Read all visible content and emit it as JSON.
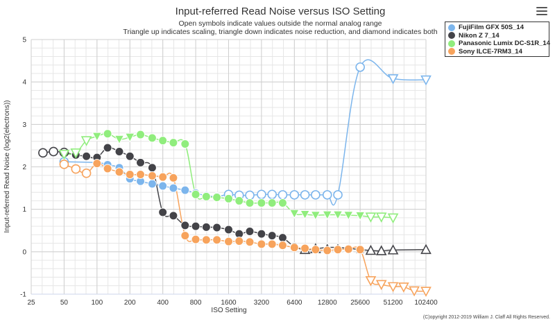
{
  "chart_data": {
    "type": "line",
    "title": "Input-referred Read Noise versus ISO Setting",
    "subtitle_lines": [
      "Open symbols indicate values outside the normal analog range",
      "Triangle up indicates scaling, triangle down indicates noise reduction, and diamond indicates both"
    ],
    "xlabel": "ISO Setting",
    "ylabel": "Input-referred Read Noise (log2(electrons))",
    "x_scale": "log2",
    "x_ticks": [
      25,
      50,
      100,
      200,
      400,
      800,
      1600,
      3200,
      6400,
      12800,
      25600,
      51200,
      102400
    ],
    "x_tick_labels": [
      "25",
      "50",
      "100",
      "200",
      "400",
      "800",
      "1600",
      "3200",
      "6400",
      "12800",
      "25600",
      "51200",
      "102400"
    ],
    "ylim": [
      -1,
      5
    ],
    "y_ticks": [
      -1,
      0,
      1,
      2,
      3,
      4,
      5
    ],
    "grid": true,
    "legend_position": "top-right",
    "credit": "(C)opyright 2012-2019 William J. Claff All Rights Reserved.",
    "series": [
      {
        "name": "FujiFilm GFX 50S_14",
        "color": "#7cb5ec",
        "points": [
          {
            "x": 50,
            "y": 2.12,
            "m": "circle",
            "open": true
          },
          {
            "x": 100,
            "y": 2.1,
            "m": "circle",
            "open": false
          },
          {
            "x": 125,
            "y": 2.05,
            "m": "circle",
            "open": false
          },
          {
            "x": 160,
            "y": 1.98,
            "m": "circle",
            "open": false
          },
          {
            "x": 200,
            "y": 1.72,
            "m": "circle",
            "open": false
          },
          {
            "x": 250,
            "y": 1.66,
            "m": "circle",
            "open": false
          },
          {
            "x": 320,
            "y": 1.6,
            "m": "circle",
            "open": false
          },
          {
            "x": 400,
            "y": 1.55,
            "m": "circle",
            "open": false
          },
          {
            "x": 500,
            "y": 1.5,
            "m": "circle",
            "open": false
          },
          {
            "x": 640,
            "y": 1.45,
            "m": "circle",
            "open": false
          },
          {
            "x": 800,
            "y": 1.38,
            "m": "circle",
            "open": false
          },
          {
            "x": 1000,
            "y": 1.32,
            "m": "circle",
            "open": false
          },
          {
            "x": 1250,
            "y": 1.3,
            "m": "circle",
            "open": false
          },
          {
            "x": 1600,
            "y": 1.35,
            "m": "circle",
            "open": true
          },
          {
            "x": 2000,
            "y": 1.33,
            "m": "circle",
            "open": true
          },
          {
            "x": 2500,
            "y": 1.33,
            "m": "circle",
            "open": true
          },
          {
            "x": 3200,
            "y": 1.35,
            "m": "circle",
            "open": true
          },
          {
            "x": 4000,
            "y": 1.35,
            "m": "circle",
            "open": true
          },
          {
            "x": 5000,
            "y": 1.34,
            "m": "circle",
            "open": true
          },
          {
            "x": 6400,
            "y": 1.34,
            "m": "circle",
            "open": true
          },
          {
            "x": 8000,
            "y": 1.34,
            "m": "circle",
            "open": true
          },
          {
            "x": 10000,
            "y": 1.34,
            "m": "circle",
            "open": true
          },
          {
            "x": 12800,
            "y": 1.34,
            "m": "circle",
            "open": true
          },
          {
            "x": 16000,
            "y": 1.34,
            "m": "circle",
            "open": true
          },
          {
            "x": 25600,
            "y": 4.35,
            "m": "circle",
            "open": true
          },
          {
            "x": 51200,
            "y": 4.08,
            "m": "triangle-down",
            "open": true
          },
          {
            "x": 102400,
            "y": 4.05,
            "m": "triangle-down",
            "open": true
          }
        ]
      },
      {
        "name": "Nikon Z 7_14",
        "color": "#434348",
        "points": [
          {
            "x": 32,
            "y": 2.33,
            "m": "circle",
            "open": true
          },
          {
            "x": 40,
            "y": 2.36,
            "m": "circle",
            "open": true
          },
          {
            "x": 50,
            "y": 2.34,
            "m": "circle",
            "open": true
          },
          {
            "x": 64,
            "y": 2.28,
            "m": "circle",
            "open": false
          },
          {
            "x": 80,
            "y": 2.25,
            "m": "circle",
            "open": false
          },
          {
            "x": 100,
            "y": 2.22,
            "m": "circle",
            "open": false
          },
          {
            "x": 125,
            "y": 2.45,
            "m": "circle",
            "open": false
          },
          {
            "x": 160,
            "y": 2.36,
            "m": "circle",
            "open": false
          },
          {
            "x": 200,
            "y": 2.25,
            "m": "circle",
            "open": false
          },
          {
            "x": 250,
            "y": 2.1,
            "m": "circle",
            "open": false
          },
          {
            "x": 320,
            "y": 1.98,
            "m": "circle",
            "open": false
          },
          {
            "x": 400,
            "y": 0.93,
            "m": "circle",
            "open": false
          },
          {
            "x": 500,
            "y": 0.85,
            "m": "circle",
            "open": false
          },
          {
            "x": 640,
            "y": 0.62,
            "m": "circle",
            "open": false
          },
          {
            "x": 800,
            "y": 0.6,
            "m": "circle",
            "open": false
          },
          {
            "x": 1000,
            "y": 0.58,
            "m": "circle",
            "open": false
          },
          {
            "x": 1250,
            "y": 0.57,
            "m": "circle",
            "open": false
          },
          {
            "x": 1600,
            "y": 0.52,
            "m": "circle",
            "open": false
          },
          {
            "x": 2000,
            "y": 0.42,
            "m": "circle",
            "open": false
          },
          {
            "x": 2500,
            "y": 0.48,
            "m": "circle",
            "open": false
          },
          {
            "x": 3200,
            "y": 0.42,
            "m": "circle",
            "open": false
          },
          {
            "x": 4000,
            "y": 0.38,
            "m": "circle",
            "open": false
          },
          {
            "x": 5000,
            "y": 0.33,
            "m": "circle",
            "open": false
          },
          {
            "x": 6400,
            "y": 0.12,
            "m": "circle",
            "open": false
          },
          {
            "x": 8000,
            "y": 0.05,
            "m": "triangle-up",
            "open": true
          },
          {
            "x": 10000,
            "y": 0.07,
            "m": "triangle-up",
            "open": true
          },
          {
            "x": 12800,
            "y": 0.1,
            "m": "triangle-up",
            "open": false
          },
          {
            "x": 16000,
            "y": 0.1,
            "m": "triangle-up",
            "open": false
          },
          {
            "x": 20000,
            "y": 0.08,
            "m": "triangle-up",
            "open": false
          },
          {
            "x": 25600,
            "y": 0.05,
            "m": "triangle-up",
            "open": false
          },
          {
            "x": 32000,
            "y": 0.03,
            "m": "triangle-up",
            "open": true
          },
          {
            "x": 40000,
            "y": 0.02,
            "m": "triangle-up",
            "open": true
          },
          {
            "x": 51200,
            "y": 0.04,
            "m": "triangle-up",
            "open": true
          },
          {
            "x": 102400,
            "y": 0.05,
            "m": "triangle-up",
            "open": true
          }
        ]
      },
      {
        "name": "Panasonic Lumix DC-S1R_14",
        "color": "#90ed7d",
        "points": [
          {
            "x": 50,
            "y": 2.3,
            "m": "triangle-down",
            "open": true
          },
          {
            "x": 64,
            "y": 2.33,
            "m": "triangle-down",
            "open": true
          },
          {
            "x": 80,
            "y": 2.62,
            "m": "triangle-down",
            "open": true
          },
          {
            "x": 100,
            "y": 2.72,
            "m": "triangle-down",
            "open": false
          },
          {
            "x": 125,
            "y": 2.78,
            "m": "circle",
            "open": false
          },
          {
            "x": 160,
            "y": 2.65,
            "m": "triangle-down",
            "open": false
          },
          {
            "x": 200,
            "y": 2.7,
            "m": "triangle-down",
            "open": false
          },
          {
            "x": 250,
            "y": 2.76,
            "m": "circle",
            "open": false
          },
          {
            "x": 320,
            "y": 2.68,
            "m": "circle",
            "open": false
          },
          {
            "x": 400,
            "y": 2.62,
            "m": "circle",
            "open": false
          },
          {
            "x": 500,
            "y": 2.57,
            "m": "circle",
            "open": false
          },
          {
            "x": 640,
            "y": 2.54,
            "m": "circle",
            "open": false
          },
          {
            "x": 800,
            "y": 1.35,
            "m": "circle",
            "open": false
          },
          {
            "x": 1000,
            "y": 1.3,
            "m": "circle",
            "open": false
          },
          {
            "x": 1250,
            "y": 1.28,
            "m": "circle",
            "open": false
          },
          {
            "x": 1600,
            "y": 1.25,
            "m": "circle",
            "open": false
          },
          {
            "x": 2000,
            "y": 1.2,
            "m": "circle",
            "open": false
          },
          {
            "x": 2500,
            "y": 1.15,
            "m": "circle",
            "open": false
          },
          {
            "x": 3200,
            "y": 1.15,
            "m": "circle",
            "open": false
          },
          {
            "x": 4000,
            "y": 1.15,
            "m": "circle",
            "open": false
          },
          {
            "x": 5000,
            "y": 1.15,
            "m": "circle",
            "open": false
          },
          {
            "x": 6400,
            "y": 0.9,
            "m": "triangle-down",
            "open": false
          },
          {
            "x": 8000,
            "y": 0.88,
            "m": "triangle-down",
            "open": false
          },
          {
            "x": 10000,
            "y": 0.86,
            "m": "triangle-down",
            "open": false
          },
          {
            "x": 12800,
            "y": 0.87,
            "m": "triangle-down",
            "open": false
          },
          {
            "x": 16000,
            "y": 0.87,
            "m": "triangle-down",
            "open": false
          },
          {
            "x": 20000,
            "y": 0.86,
            "m": "triangle-down",
            "open": false
          },
          {
            "x": 25600,
            "y": 0.85,
            "m": "triangle-down",
            "open": false
          },
          {
            "x": 32000,
            "y": 0.82,
            "m": "triangle-down",
            "open": true
          },
          {
            "x": 40000,
            "y": 0.82,
            "m": "triangle-down",
            "open": true
          },
          {
            "x": 51200,
            "y": 0.8,
            "m": "triangle-down",
            "open": true
          }
        ]
      },
      {
        "name": "Sony ILCE-7RM3_14",
        "color": "#f7a35c",
        "points": [
          {
            "x": 50,
            "y": 2.06,
            "m": "circle",
            "open": true
          },
          {
            "x": 64,
            "y": 1.95,
            "m": "circle",
            "open": true
          },
          {
            "x": 80,
            "y": 1.85,
            "m": "circle",
            "open": true
          },
          {
            "x": 100,
            "y": 2.08,
            "m": "circle",
            "open": false
          },
          {
            "x": 125,
            "y": 1.96,
            "m": "circle",
            "open": false
          },
          {
            "x": 160,
            "y": 1.88,
            "m": "circle",
            "open": false
          },
          {
            "x": 200,
            "y": 1.82,
            "m": "circle",
            "open": false
          },
          {
            "x": 250,
            "y": 1.82,
            "m": "circle",
            "open": false
          },
          {
            "x": 320,
            "y": 1.79,
            "m": "circle",
            "open": false
          },
          {
            "x": 400,
            "y": 1.76,
            "m": "circle",
            "open": false
          },
          {
            "x": 500,
            "y": 1.74,
            "m": "circle",
            "open": false
          },
          {
            "x": 640,
            "y": 0.38,
            "m": "circle",
            "open": false
          },
          {
            "x": 800,
            "y": 0.29,
            "m": "circle",
            "open": false
          },
          {
            "x": 1000,
            "y": 0.28,
            "m": "circle",
            "open": false
          },
          {
            "x": 1250,
            "y": 0.28,
            "m": "circle",
            "open": false
          },
          {
            "x": 1600,
            "y": 0.24,
            "m": "circle",
            "open": false
          },
          {
            "x": 2000,
            "y": 0.25,
            "m": "circle",
            "open": false
          },
          {
            "x": 2500,
            "y": 0.23,
            "m": "circle",
            "open": false
          },
          {
            "x": 3200,
            "y": 0.18,
            "m": "circle",
            "open": false
          },
          {
            "x": 4000,
            "y": 0.18,
            "m": "circle",
            "open": false
          },
          {
            "x": 5000,
            "y": 0.15,
            "m": "circle",
            "open": false
          },
          {
            "x": 6400,
            "y": 0.1,
            "m": "circle",
            "open": false
          },
          {
            "x": 8000,
            "y": 0.08,
            "m": "circle",
            "open": false
          },
          {
            "x": 10000,
            "y": 0.05,
            "m": "circle",
            "open": false
          },
          {
            "x": 12800,
            "y": 0.03,
            "m": "circle",
            "open": false
          },
          {
            "x": 16000,
            "y": 0.05,
            "m": "circle",
            "open": false
          },
          {
            "x": 20000,
            "y": 0.06,
            "m": "circle",
            "open": false
          },
          {
            "x": 25600,
            "y": 0.05,
            "m": "circle",
            "open": false
          },
          {
            "x": 32000,
            "y": -0.68,
            "m": "triangle-down",
            "open": true
          },
          {
            "x": 40000,
            "y": -0.77,
            "m": "triangle-down",
            "open": true
          },
          {
            "x": 51200,
            "y": -0.82,
            "m": "triangle-down",
            "open": true
          },
          {
            "x": 64000,
            "y": -0.83,
            "m": "triangle-down",
            "open": true
          },
          {
            "x": 80000,
            "y": -0.92,
            "m": "triangle-down",
            "open": true
          },
          {
            "x": 102400,
            "y": -0.93,
            "m": "triangle-down",
            "open": true
          }
        ]
      }
    ]
  }
}
